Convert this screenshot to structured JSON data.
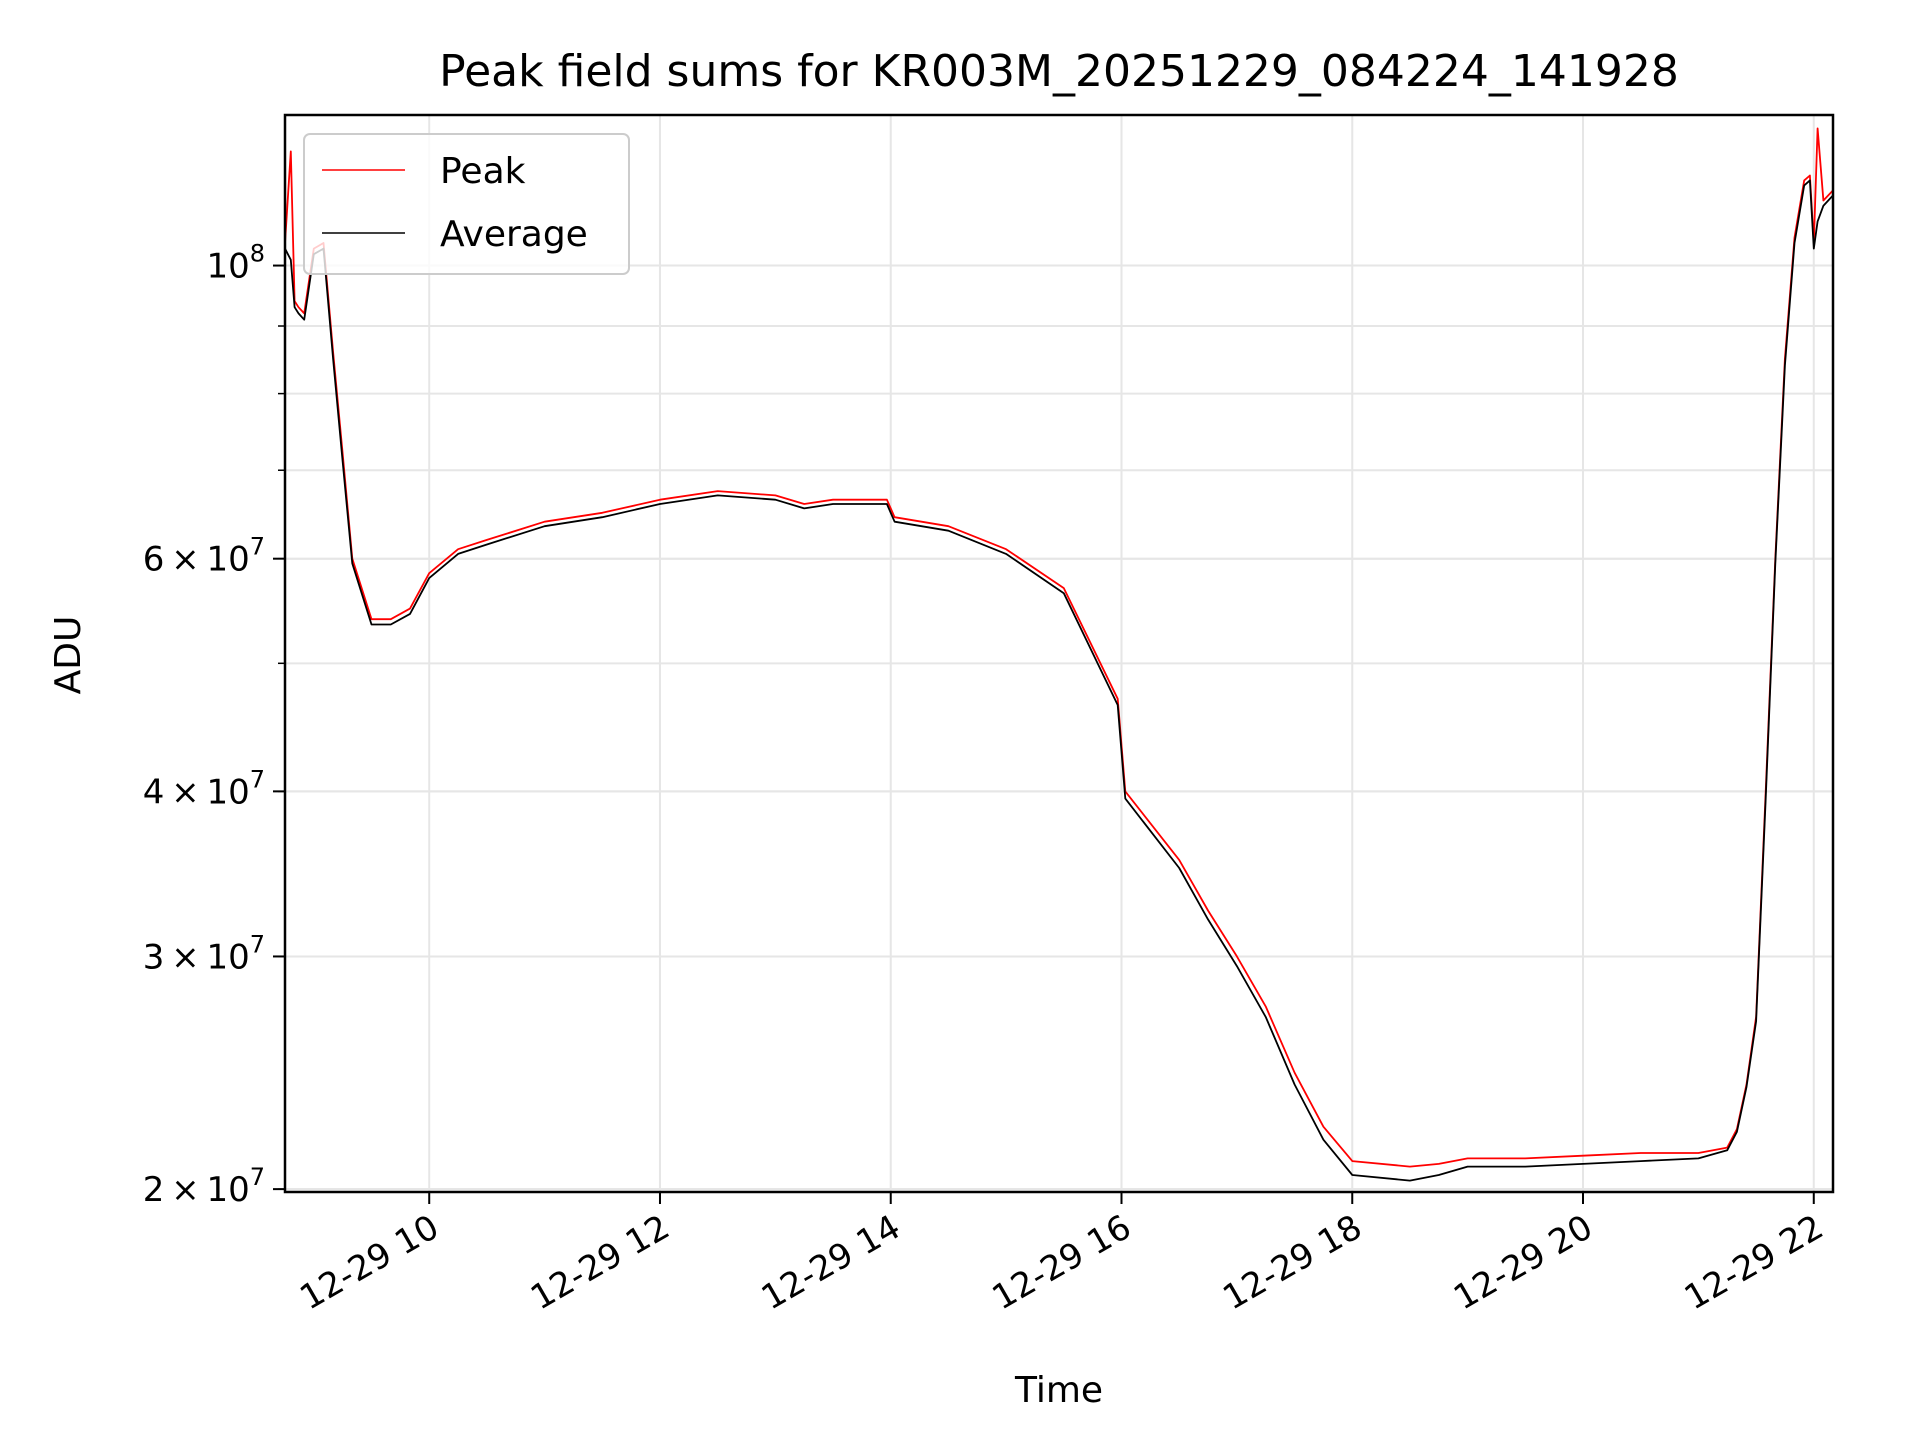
{
  "chart_data": {
    "type": "line",
    "title": "Peak field sums for KR003M_20251229_084224_141928",
    "xlabel": "Time",
    "ylabel": "ADU",
    "xlim": [
      "2025-12-29 08:45",
      "2025-12-29 22:10"
    ],
    "ylim": [
      19900000,
      130000000
    ],
    "yscale": "log",
    "grid": true,
    "legend_position": "top-left",
    "x_ticks": [
      "12-29 10",
      "12-29 12",
      "12-29 14",
      "12-29 16",
      "12-29 18",
      "12-29 20",
      "12-29 22"
    ],
    "y_ticks": [
      {
        "value": 20000000,
        "mantissa": "2",
        "exp": "7"
      },
      {
        "value": 30000000,
        "mantissa": "3",
        "exp": "7"
      },
      {
        "value": 40000000,
        "mantissa": "4",
        "exp": "7"
      },
      {
        "value": 60000000,
        "mantissa": "6",
        "exp": "7"
      },
      {
        "value": 100000000,
        "mantissa": "10",
        "exp": "8"
      }
    ],
    "series": [
      {
        "name": "Peak",
        "color": "#ff0000",
        "x": [
          "2025-12-29 08:45",
          "2025-12-29 08:48",
          "2025-12-29 08:50",
          "2025-12-29 08:52",
          "2025-12-29 08:55",
          "2025-12-29 09:00",
          "2025-12-29 09:05",
          "2025-12-29 09:10",
          "2025-12-29 09:15",
          "2025-12-29 09:20",
          "2025-12-29 09:30",
          "2025-12-29 09:40",
          "2025-12-29 09:50",
          "2025-12-29 10:00",
          "2025-12-29 10:15",
          "2025-12-29 10:30",
          "2025-12-29 11:00",
          "2025-12-29 11:30",
          "2025-12-29 12:00",
          "2025-12-29 12:30",
          "2025-12-29 13:00",
          "2025-12-29 13:15",
          "2025-12-29 13:30",
          "2025-12-29 13:58",
          "2025-12-29 14:02",
          "2025-12-29 14:30",
          "2025-12-29 15:00",
          "2025-12-29 15:30",
          "2025-12-29 15:58",
          "2025-12-29 16:02",
          "2025-12-29 16:30",
          "2025-12-29 16:45",
          "2025-12-29 17:00",
          "2025-12-29 17:15",
          "2025-12-29 17:30",
          "2025-12-29 17:45",
          "2025-12-29 18:00",
          "2025-12-29 18:30",
          "2025-12-29 18:45",
          "2025-12-29 19:00",
          "2025-12-29 19:30",
          "2025-12-29 20:00",
          "2025-12-29 20:30",
          "2025-12-29 21:00",
          "2025-12-29 21:15",
          "2025-12-29 21:20",
          "2025-12-29 21:25",
          "2025-12-29 21:30",
          "2025-12-29 21:35",
          "2025-12-29 21:40",
          "2025-12-29 21:45",
          "2025-12-29 21:50",
          "2025-12-29 21:55",
          "2025-12-29 21:58",
          "2025-12-29 22:00",
          "2025-12-29 22:02",
          "2025-12-29 22:05",
          "2025-12-29 22:10"
        ],
        "values": [
          104000000,
          122000000,
          94000000,
          93000000,
          92000000,
          103000000,
          104000000,
          86000000,
          72000000,
          60000000,
          54000000,
          54000000,
          55000000,
          58500000,
          61000000,
          62000000,
          64000000,
          65000000,
          66500000,
          67500000,
          67000000,
          66000000,
          66500000,
          66500000,
          64500000,
          63500000,
          61000000,
          57000000,
          47000000,
          40000000,
          35500000,
          32500000,
          30000000,
          27500000,
          24500000,
          22300000,
          21000000,
          20800000,
          20900000,
          21100000,
          21100000,
          21200000,
          21300000,
          21300000,
          21500000,
          22200000,
          24000000,
          27000000,
          40000000,
          60000000,
          85000000,
          105000000,
          116000000,
          117000000,
          104000000,
          127000000,
          112000000,
          114000000
        ]
      },
      {
        "name": "Average",
        "color": "#000000",
        "x": [
          "2025-12-29 08:45",
          "2025-12-29 08:48",
          "2025-12-29 08:50",
          "2025-12-29 08:52",
          "2025-12-29 08:55",
          "2025-12-29 09:00",
          "2025-12-29 09:05",
          "2025-12-29 09:10",
          "2025-12-29 09:15",
          "2025-12-29 09:20",
          "2025-12-29 09:30",
          "2025-12-29 09:40",
          "2025-12-29 09:50",
          "2025-12-29 10:00",
          "2025-12-29 10:15",
          "2025-12-29 10:30",
          "2025-12-29 11:00",
          "2025-12-29 11:30",
          "2025-12-29 12:00",
          "2025-12-29 12:30",
          "2025-12-29 13:00",
          "2025-12-29 13:15",
          "2025-12-29 13:30",
          "2025-12-29 13:58",
          "2025-12-29 14:02",
          "2025-12-29 14:30",
          "2025-12-29 15:00",
          "2025-12-29 15:30",
          "2025-12-29 15:58",
          "2025-12-29 16:02",
          "2025-12-29 16:30",
          "2025-12-29 16:45",
          "2025-12-29 17:00",
          "2025-12-29 17:15",
          "2025-12-29 17:30",
          "2025-12-29 17:45",
          "2025-12-29 18:00",
          "2025-12-29 18:30",
          "2025-12-29 18:45",
          "2025-12-29 19:00",
          "2025-12-29 19:30",
          "2025-12-29 20:00",
          "2025-12-29 20:30",
          "2025-12-29 21:00",
          "2025-12-29 21:15",
          "2025-12-29 21:20",
          "2025-12-29 21:25",
          "2025-12-29 21:30",
          "2025-12-29 21:35",
          "2025-12-29 21:40",
          "2025-12-29 21:45",
          "2025-12-29 21:50",
          "2025-12-29 21:55",
          "2025-12-29 21:58",
          "2025-12-29 22:00",
          "2025-12-29 22:02",
          "2025-12-29 22:05",
          "2025-12-29 22:10"
        ],
        "values": [
          103000000,
          101000000,
          93000000,
          92000000,
          91000000,
          102000000,
          103000000,
          85000000,
          71000000,
          59500000,
          53500000,
          53500000,
          54500000,
          58000000,
          60500000,
          61500000,
          63500000,
          64500000,
          66000000,
          67000000,
          66500000,
          65500000,
          66000000,
          66000000,
          64000000,
          63000000,
          60500000,
          56500000,
          46500000,
          39500000,
          35000000,
          32000000,
          29500000,
          27000000,
          24000000,
          21800000,
          20500000,
          20300000,
          20500000,
          20800000,
          20800000,
          20900000,
          21000000,
          21100000,
          21400000,
          22100000,
          23900000,
          26800000,
          39500000,
          59500000,
          84000000,
          104000000,
          115000000,
          116000000,
          103000000,
          108000000,
          111000000,
          113000000
        ]
      }
    ]
  }
}
